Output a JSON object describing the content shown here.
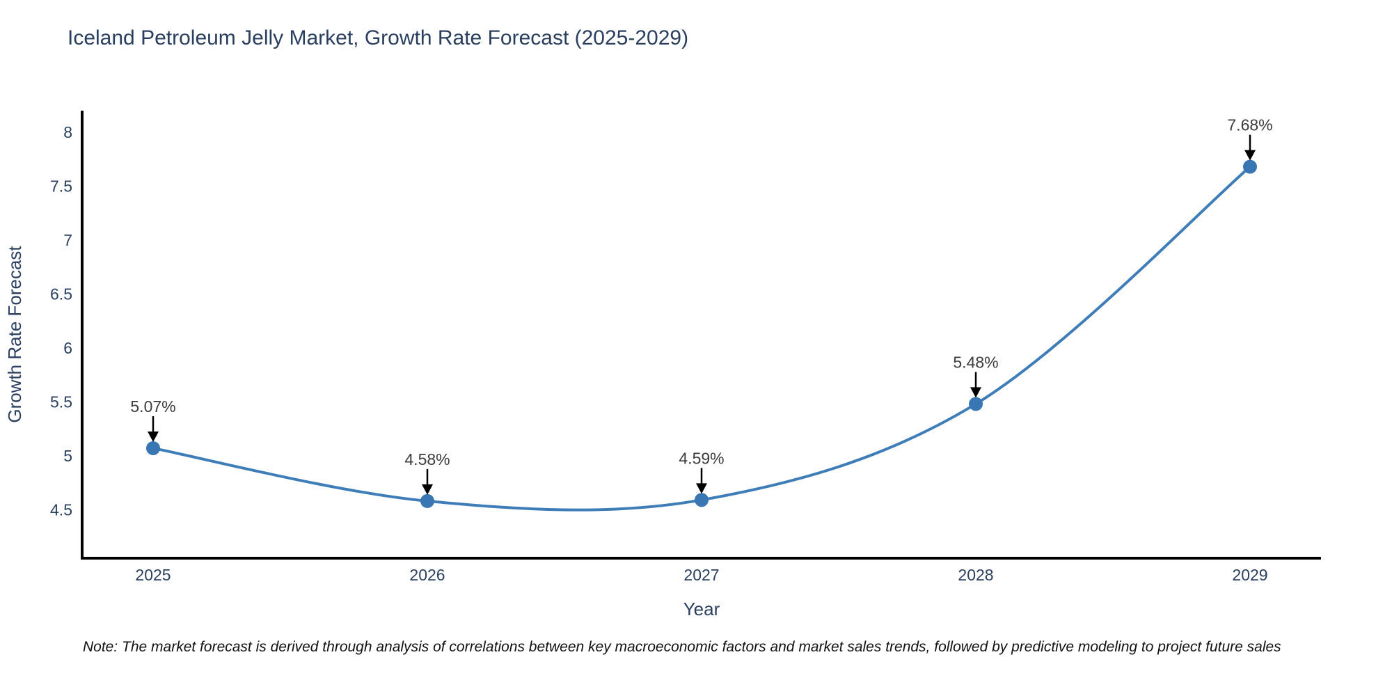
{
  "title": "Iceland Petroleum Jelly Market, Growth Rate Forecast (2025-2029)",
  "note": "Note: The market forecast is derived through analysis of correlations between key macroeconomic factors and market sales trends, followed by predictive modeling to project future sales",
  "chart_data": {
    "type": "line",
    "title": "Iceland Petroleum Jelly Market, Growth Rate Forecast (2025-2029)",
    "xlabel": "Year",
    "ylabel": "Growth Rate Forecast",
    "categories": [
      "2025",
      "2026",
      "2027",
      "2028",
      "2029"
    ],
    "series": [
      {
        "name": "Growth Rate Forecast",
        "values": [
          5.07,
          4.58,
          4.59,
          5.48,
          7.68
        ]
      }
    ],
    "point_labels": [
      "5.07%",
      "4.58%",
      "4.59%",
      "5.48%",
      "7.68%"
    ],
    "yticks": [
      4.5,
      5,
      5.5,
      6,
      6.5,
      7,
      7.5,
      8
    ],
    "ylim": [
      4.05,
      8.2
    ],
    "line_shape": "spline",
    "grid": false,
    "legend_position": "none",
    "colors": {
      "line": "#3f7db8",
      "marker": "#3876b4",
      "axis_line": "#000000",
      "axis_text": "#2a3f5f",
      "title_text": "#2a3f5f",
      "annotation_text": "#3b3b3b",
      "annotation_arrow": "#000000",
      "background": "#ffffff"
    }
  }
}
